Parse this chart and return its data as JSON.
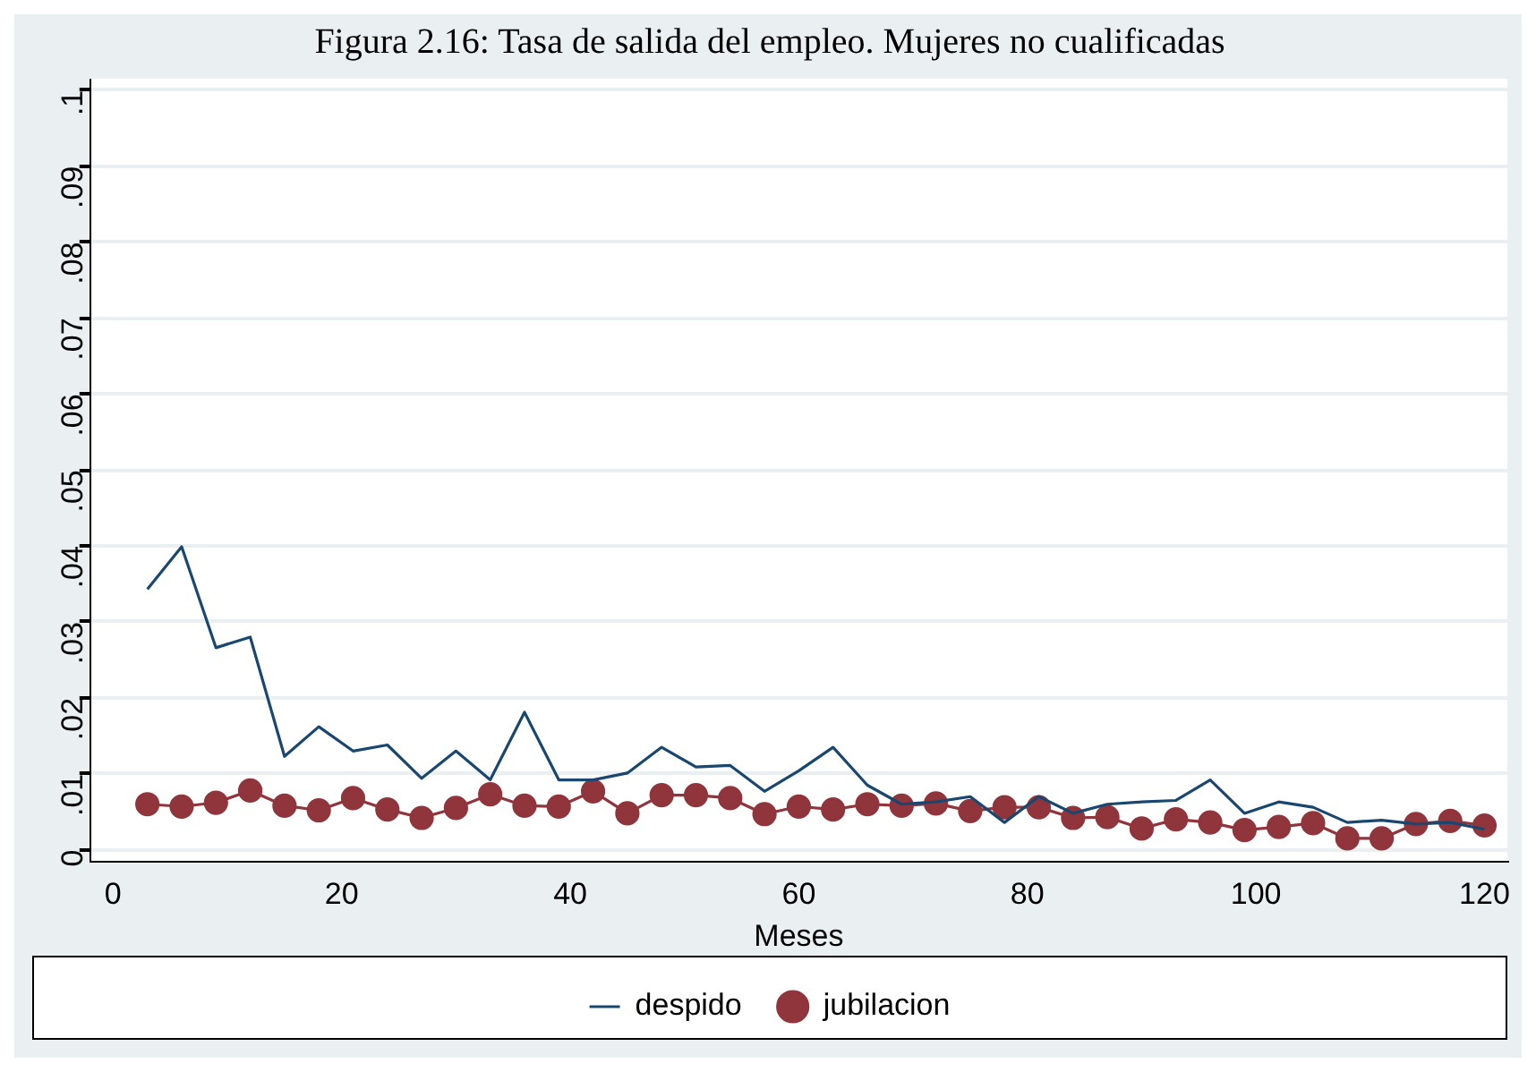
{
  "chart_data": {
    "type": "line",
    "title": "Figura 2.16: Tasa de salida del empleo. Mujeres no cualificadas",
    "xlabel": "Meses",
    "x": [
      3,
      6,
      9,
      12,
      15,
      18,
      21,
      24,
      27,
      30,
      33,
      36,
      39,
      42,
      45,
      48,
      51,
      54,
      57,
      60,
      63,
      66,
      69,
      72,
      75,
      78,
      81,
      84,
      87,
      90,
      93,
      96,
      99,
      102,
      105,
      108,
      111,
      114,
      117,
      120
    ],
    "series": [
      {
        "name": "despido",
        "color": "#1a476f",
        "marker": "none",
        "values": [
          0.0343,
          0.0399,
          0.0266,
          0.028,
          0.0123,
          0.0162,
          0.013,
          0.0138,
          0.0094,
          0.013,
          0.0092,
          0.0181,
          0.0092,
          0.0092,
          0.0101,
          0.0135,
          0.0109,
          0.0111,
          0.0077,
          0.0104,
          0.0135,
          0.0085,
          0.006,
          0.0063,
          0.007,
          0.0036,
          0.007,
          0.0048,
          0.006,
          0.0063,
          0.0065,
          0.0092,
          0.0048,
          0.0063,
          0.0056,
          0.0036,
          0.0039,
          0.0034,
          0.0036,
          0.0027
        ]
      },
      {
        "name": "jubilacion",
        "color": "#90353b",
        "marker": "circle",
        "values": [
          0.006,
          0.0057,
          0.0062,
          0.0078,
          0.0058,
          0.0052,
          0.0068,
          0.0053,
          0.0042,
          0.0055,
          0.0073,
          0.0058,
          0.0057,
          0.0077,
          0.0048,
          0.0072,
          0.0072,
          0.0068,
          0.0047,
          0.0057,
          0.0053,
          0.006,
          0.0058,
          0.0061,
          0.0051,
          0.0056,
          0.0056,
          0.0042,
          0.0043,
          0.0028,
          0.004,
          0.0036,
          0.0026,
          0.003,
          0.0035,
          0.0015,
          0.0015,
          0.0034,
          0.0038,
          0.0032
        ]
      }
    ],
    "xlim": [
      -2,
      122
    ],
    "xticks": [
      0,
      20,
      40,
      60,
      80,
      100,
      120
    ],
    "ylim": [
      -0.0015,
      0.1015
    ],
    "yticks": [
      {
        "value": 0,
        "label": "0"
      },
      {
        "value": 0.01,
        "label": ".01"
      },
      {
        "value": 0.02,
        "label": ".02"
      },
      {
        "value": 0.03,
        "label": ".03"
      },
      {
        "value": 0.04,
        "label": ".04"
      },
      {
        "value": 0.05,
        "label": ".05"
      },
      {
        "value": 0.06,
        "label": ".06"
      },
      {
        "value": 0.07,
        "label": ".07"
      },
      {
        "value": 0.08,
        "label": ".08"
      },
      {
        "value": 0.09,
        "label": ".09"
      },
      {
        "value": 0.1,
        "label": ".1"
      }
    ],
    "grid": "y",
    "legend": "bottom",
    "line_style": "solid"
  }
}
